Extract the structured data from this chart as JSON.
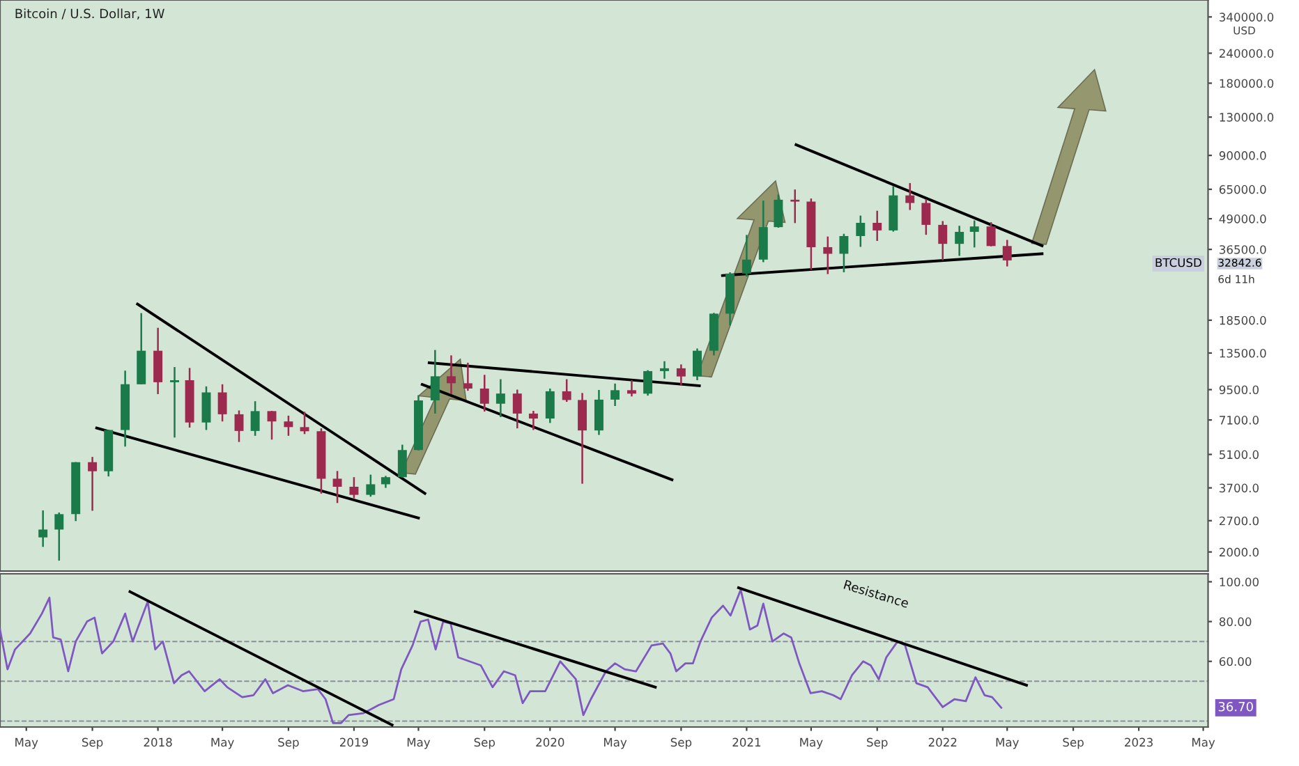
{
  "chart_data": [
    {
      "type": "candlestick",
      "title": "Bitcoin / U.S. Dollar, 1W",
      "log": true,
      "tick_labels": "y",
      "xlim": [
        "2017-03-13",
        "2023-05-10"
      ],
      "ylim": [
        1665,
        400000
      ],
      "yticks": [
        {
          "value": 2000,
          "label": "2000.0"
        },
        {
          "value": 2700,
          "label": "2700.0"
        },
        {
          "value": 3700,
          "label": "3700.0"
        },
        {
          "value": 5100,
          "label": "5100.0"
        },
        {
          "value": 7100,
          "label": "7100.0"
        },
        {
          "value": 9500,
          "label": "9500.0"
        },
        {
          "value": 13500,
          "label": "13500.0"
        },
        {
          "value": 18500,
          "label": "18500.0"
        },
        {
          "value": 36500,
          "label": "36500.0"
        },
        {
          "value": 49000,
          "label": "49000.0"
        },
        {
          "value": 65000,
          "label": "65000.0"
        },
        {
          "value": 90000,
          "label": "90000.0"
        },
        {
          "value": 130000,
          "label": "130000.0"
        },
        {
          "value": 180000,
          "label": "180000.0"
        },
        {
          "value": 240000,
          "label": "240000.0"
        },
        {
          "value": 340000,
          "label": "340000.0"
        }
      ],
      "x": [
        "2017-06-01",
        "2017-07-01",
        "2017-08-01",
        "2017-09-01",
        "2017-10-01",
        "2017-11-01",
        "2017-12-01",
        "2018-01-01",
        "2018-02-01",
        "2018-03-01",
        "2018-04-01",
        "2018-05-01",
        "2018-06-01",
        "2018-07-01",
        "2018-08-01",
        "2018-09-01",
        "2018-10-01",
        "2018-11-01",
        "2018-12-01",
        "2019-01-01",
        "2019-02-01",
        "2019-03-01",
        "2019-04-01",
        "2019-05-01",
        "2019-06-01",
        "2019-07-01",
        "2019-08-01",
        "2019-09-01",
        "2019-10-01",
        "2019-11-01",
        "2019-12-01",
        "2020-01-01",
        "2020-02-01",
        "2020-03-01",
        "2020-04-01",
        "2020-05-01",
        "2020-06-01",
        "2020-07-01",
        "2020-08-01",
        "2020-09-01",
        "2020-10-01",
        "2020-11-01",
        "2020-12-01",
        "2021-01-01",
        "2021-02-01",
        "2021-03-01",
        "2021-04-01",
        "2021-05-01",
        "2021-06-01",
        "2021-07-01",
        "2021-08-01",
        "2021-09-01",
        "2021-10-01",
        "2021-11-01",
        "2021-12-01",
        "2022-01-01",
        "2022-02-01",
        "2022-03-01",
        "2022-04-01",
        "2022-05-01"
      ],
      "ohlc": [
        [
          2300,
          2980,
          2100,
          2480
        ],
        [
          2480,
          2920,
          1840,
          2875
        ],
        [
          2875,
          4740,
          2690,
          4735
        ],
        [
          4735,
          4980,
          2970,
          4340
        ],
        [
          4340,
          6470,
          4130,
          6450
        ],
        [
          6450,
          11400,
          5500,
          10000
        ],
        [
          10000,
          19800,
          10000,
          13800
        ],
        [
          13800,
          17200,
          9100,
          10200
        ],
        [
          10200,
          11800,
          6000,
          10400
        ],
        [
          10400,
          11700,
          6600,
          6930
        ],
        [
          6930,
          9800,
          6450,
          9250
        ],
        [
          9250,
          10000,
          7000,
          7500
        ],
        [
          7500,
          7780,
          5750,
          6390
        ],
        [
          6390,
          8500,
          6100,
          7730
        ],
        [
          7730,
          7750,
          5880,
          7000
        ],
        [
          7000,
          7400,
          6100,
          6630
        ],
        [
          6630,
          7680,
          6200,
          6370
        ],
        [
          6370,
          6550,
          3500,
          4040
        ],
        [
          4040,
          4350,
          3200,
          3740
        ],
        [
          3740,
          4100,
          3350,
          3460
        ],
        [
          3460,
          4200,
          3400,
          3830
        ],
        [
          3830,
          4150,
          3700,
          4100
        ],
        [
          4100,
          5600,
          4080,
          5320
        ],
        [
          5320,
          9000,
          5300,
          8570
        ],
        [
          8570,
          13900,
          7550,
          10800
        ],
        [
          10800,
          13200,
          9100,
          10100
        ],
        [
          10100,
          12300,
          9400,
          9600
        ],
        [
          9600,
          10950,
          7700,
          8300
        ],
        [
          8300,
          10500,
          7300,
          9150
        ],
        [
          9150,
          9500,
          6550,
          7550
        ],
        [
          7550,
          7750,
          6450,
          7200
        ],
        [
          7200,
          9600,
          6900,
          9350
        ],
        [
          9350,
          10500,
          8450,
          8600
        ],
        [
          8600,
          9200,
          3850,
          6420
        ],
        [
          6420,
          9470,
          6150,
          8630
        ],
        [
          8630,
          10070,
          8120,
          9450
        ],
        [
          9450,
          10400,
          8900,
          9140
        ],
        [
          9140,
          11450,
          8970,
          11350
        ],
        [
          11350,
          12480,
          10550,
          11660
        ],
        [
          11660,
          12100,
          9900,
          10780
        ],
        [
          10780,
          14100,
          10400,
          13800
        ],
        [
          13800,
          19850,
          13200,
          19700
        ],
        [
          19700,
          29300,
          17600,
          28950
        ],
        [
          28950,
          41950,
          28150,
          33100
        ],
        [
          33100,
          58300,
          32300,
          45200
        ],
        [
          45200,
          61800,
          44950,
          58800
        ],
        [
          58800,
          64900,
          47000,
          57750
        ],
        [
          57750,
          59500,
          30000,
          37300
        ],
        [
          37300,
          41300,
          28800,
          35000
        ],
        [
          35000,
          42400,
          29300,
          41500
        ],
        [
          41500,
          50500,
          37400,
          47100
        ],
        [
          47100,
          52900,
          39600,
          43800
        ],
        [
          43800,
          67000,
          43300,
          61300
        ],
        [
          61300,
          69000,
          53300,
          57000
        ],
        [
          57000,
          59100,
          42000,
          46200
        ],
        [
          46200,
          47900,
          32900,
          38500
        ],
        [
          38500,
          45800,
          34300,
          43200
        ],
        [
          43200,
          48200,
          37200,
          45500
        ],
        [
          45500,
          47400,
          37600,
          37700
        ],
        [
          37700,
          40000,
          31000,
          32842.6
        ]
      ],
      "colors": [
        "#1b7a4a",
        "#1b7a4a",
        "#1b7a4a",
        "#9c2a4f",
        "#1b7a4a",
        "#1b7a4a",
        "#1b7a4a",
        "#9c2a4f",
        "#1b7a4a",
        "#9c2a4f",
        "#1b7a4a",
        "#9c2a4f",
        "#9c2a4f",
        "#1b7a4a",
        "#9c2a4f",
        "#9c2a4f",
        "#9c2a4f",
        "#9c2a4f",
        "#9c2a4f",
        "#9c2a4f",
        "#1b7a4a",
        "#1b7a4a",
        "#1b7a4a",
        "#1b7a4a",
        "#1b7a4a",
        "#9c2a4f",
        "#9c2a4f",
        "#9c2a4f",
        "#1b7a4a",
        "#9c2a4f",
        "#9c2a4f",
        "#1b7a4a",
        "#9c2a4f",
        "#9c2a4f",
        "#1b7a4a",
        "#1b7a4a",
        "#9c2a4f",
        "#1b7a4a",
        "#1b7a4a",
        "#9c2a4f",
        "#1b7a4a",
        "#1b7a4a",
        "#1b7a4a",
        "#1b7a4a",
        "#1b7a4a",
        "#1b7a4a",
        "#9c2a4f",
        "#9c2a4f",
        "#9c2a4f",
        "#1b7a4a",
        "#1b7a4a",
        "#9c2a4f",
        "#1b7a4a",
        "#9c2a4f",
        "#9c2a4f",
        "#9c2a4f",
        "#1b7a4a",
        "#1b7a4a",
        "#9c2a4f",
        "#9c2a4f"
      ],
      "series": [
        {
          "type": "line",
          "color": "#000000",
          "x": [
            "2017-11-24",
            "2019-05-13"
          ],
          "values": [
            21600,
            3510
          ]
        },
        {
          "type": "line",
          "color": "#000000",
          "x": [
            "2017-09-09",
            "2019-05-01"
          ],
          "values": [
            6570,
            2770
          ]
        },
        {
          "type": "line",
          "color": "#000000",
          "x": [
            "2019-05-21",
            "2020-10-05"
          ],
          "values": [
            12300,
            9860
          ]
        },
        {
          "type": "line",
          "color": "#000000",
          "x": [
            "2019-05-08",
            "2020-08-15"
          ],
          "values": [
            9980,
            4000
          ]
        },
        {
          "type": "line",
          "color": "#000000",
          "x": [
            "2021-04-03",
            "2022-07-05"
          ],
          "values": [
            99700,
            37800
          ]
        },
        {
          "type": "line",
          "color": "#000000",
          "x": [
            "2020-11-17",
            "2022-07-05"
          ],
          "values": [
            28400,
            35000
          ]
        }
      ],
      "annotations": [
        "USD",
        "32842.6",
        "6d 11h",
        "BTCUSD"
      ]
    },
    {
      "type": "line",
      "xlim": [
        "2017-03-13",
        "2023-05-10"
      ],
      "ylim": [
        27,
        104
      ],
      "yticks": [
        {
          "value": 60,
          "label": "60.00"
        },
        {
          "value": 80,
          "label": "80.00"
        },
        {
          "value": 100,
          "label": "100.00"
        }
      ],
      "xticks": [
        {
          "value": "2017-05-01",
          "label": "May"
        },
        {
          "value": "2017-09-01",
          "label": "Sep"
        },
        {
          "value": "2018-01-01",
          "label": "2018"
        },
        {
          "value": "2018-05-01",
          "label": "May"
        },
        {
          "value": "2018-09-01",
          "label": "Sep"
        },
        {
          "value": "2019-01-01",
          "label": "2019"
        },
        {
          "value": "2019-05-01",
          "label": "May"
        },
        {
          "value": "2019-09-01",
          "label": "Sep"
        },
        {
          "value": "2020-01-01",
          "label": "2020"
        },
        {
          "value": "2020-05-01",
          "label": "May"
        },
        {
          "value": "2020-09-01",
          "label": "Sep"
        },
        {
          "value": "2021-01-01",
          "label": "2021"
        },
        {
          "value": "2021-05-01",
          "label": "May"
        },
        {
          "value": "2021-09-01",
          "label": "Sep"
        },
        {
          "value": "2022-01-01",
          "label": "2022"
        },
        {
          "value": "2022-05-01",
          "label": "May"
        },
        {
          "value": "2022-09-01",
          "label": "Sep"
        },
        {
          "value": "2023-01-01",
          "label": "2023"
        },
        {
          "value": "2023-05-01",
          "label": "May"
        }
      ],
      "series": [
        {
          "type": "line",
          "color": "#7e57c2",
          "x": [
            "2017-03-13",
            "2017-03-27",
            "2017-04-10",
            "2017-05-08",
            "2017-05-30",
            "2017-06-13",
            "2017-06-20",
            "2017-07-04",
            "2017-07-18",
            "2017-08-01",
            "2017-08-22",
            "2017-09-05",
            "2017-09-19",
            "2017-10-10",
            "2017-11-01",
            "2017-11-15",
            "2017-12-13",
            "2017-12-27",
            "2018-01-10",
            "2018-01-31",
            "2018-02-14",
            "2018-02-28",
            "2018-03-29",
            "2018-04-26",
            "2018-05-10",
            "2018-06-07",
            "2018-06-28",
            "2018-07-20",
            "2018-08-03",
            "2018-08-31",
            "2018-09-28",
            "2018-10-26",
            "2018-11-09",
            "2018-11-23",
            "2018-12-08",
            "2018-12-22",
            "2019-01-19",
            "2019-02-16",
            "2019-03-16",
            "2019-03-30",
            "2019-04-20",
            "2019-05-05",
            "2019-05-19",
            "2019-06-02",
            "2019-06-16",
            "2019-06-30",
            "2019-07-14",
            "2019-08-04",
            "2019-08-25",
            "2019-09-16",
            "2019-10-07",
            "2019-10-28",
            "2019-11-11",
            "2019-11-25",
            "2019-12-23",
            "2020-01-20",
            "2020-02-18",
            "2020-03-03",
            "2020-03-17",
            "2020-04-14",
            "2020-05-01",
            "2020-05-19",
            "2020-06-09",
            "2020-07-08",
            "2020-07-29",
            "2020-08-12",
            "2020-08-23",
            "2020-09-09",
            "2020-09-23",
            "2020-10-07",
            "2020-10-28",
            "2020-11-18",
            "2020-12-02",
            "2020-12-21",
            "2021-01-07",
            "2021-01-21",
            "2021-02-01",
            "2021-02-18",
            "2021-03-11",
            "2021-03-25",
            "2021-04-09",
            "2021-04-30",
            "2021-05-21",
            "2021-06-11",
            "2021-06-25",
            "2021-07-16",
            "2021-08-06",
            "2021-08-20",
            "2021-09-04",
            "2021-09-18",
            "2021-10-09",
            "2021-10-23",
            "2021-11-13",
            "2021-12-04",
            "2022-01-01",
            "2022-01-23",
            "2022-02-13",
            "2022-03-03",
            "2022-03-20",
            "2022-04-03",
            "2022-04-20"
          ],
          "values": [
            76,
            56,
            66,
            74,
            84,
            92,
            72,
            71,
            55,
            70,
            80,
            82,
            64,
            70,
            84,
            70,
            90,
            66,
            70,
            49,
            53,
            55,
            45,
            51,
            47,
            42,
            43,
            51,
            44,
            48,
            45,
            46,
            41,
            29,
            29,
            33,
            34,
            38,
            41,
            56,
            68,
            80,
            81,
            66,
            80,
            79,
            62,
            60,
            58,
            47,
            55,
            53,
            39,
            45,
            45,
            60,
            51,
            33,
            41,
            55,
            59,
            56,
            55,
            68,
            69,
            64,
            55,
            59,
            59,
            70,
            82,
            88,
            83,
            96,
            76,
            78,
            89,
            70,
            74,
            72,
            59,
            44,
            45,
            43,
            41,
            53,
            60,
            58,
            51,
            62,
            70,
            68,
            49,
            47,
            37,
            41,
            40,
            52,
            43,
            42,
            36.7
          ]
        },
        {
          "type": "line",
          "color": "#000000",
          "x": [
            "2017-11-10",
            "2019-03-13"
          ],
          "values": [
            95,
            28
          ]
        },
        {
          "type": "line",
          "color": "#000000",
          "x": [
            "2019-04-25",
            "2020-07-15"
          ],
          "values": [
            85,
            47
          ]
        },
        {
          "type": "line",
          "color": "#000000",
          "x": [
            "2020-12-17",
            "2022-06-06"
          ],
          "values": [
            97,
            48
          ]
        }
      ],
      "ref_lines": [
        {
          "axis": "y",
          "value": 70,
          "color": "#8a8f99",
          "line_style": "dashed"
        },
        {
          "axis": "y",
          "value": 50,
          "color": "#8a8f99",
          "line_style": "dashed"
        },
        {
          "axis": "y",
          "value": 30,
          "color": "#8a8f99",
          "line_style": "dashed"
        }
      ],
      "annotations": [
        "Resistance",
        "36.70"
      ]
    }
  ]
}
